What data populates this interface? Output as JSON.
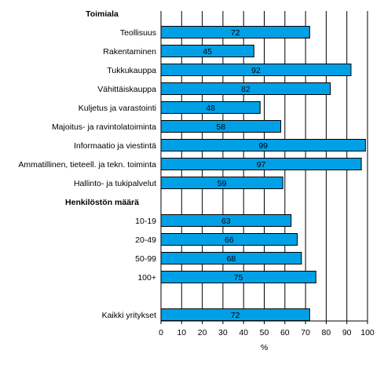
{
  "chart_data": {
    "type": "bar",
    "orientation": "horizontal",
    "xlabel": "%",
    "xlim": [
      0,
      100
    ],
    "xticks": [
      0,
      10,
      20,
      30,
      40,
      50,
      60,
      70,
      80,
      90,
      100
    ],
    "grid": "vertical",
    "bar_color": "#00a0e6",
    "rows": [
      {
        "kind": "heading",
        "label": "Toimiala"
      },
      {
        "kind": "bar",
        "label": "Teollisuus",
        "value": 72
      },
      {
        "kind": "bar",
        "label": "Rakentaminen",
        "value": 45
      },
      {
        "kind": "bar",
        "label": "Tukkukauppa",
        "value": 92
      },
      {
        "kind": "bar",
        "label": "Vähittäiskauppa",
        "value": 82
      },
      {
        "kind": "bar",
        "label": "Kuljetus ja varastointi",
        "value": 48
      },
      {
        "kind": "bar",
        "label": "Majoitus- ja ravintolatoiminta",
        "value": 58
      },
      {
        "kind": "bar",
        "label": "Informaatio ja viestintä",
        "value": 99
      },
      {
        "kind": "bar",
        "label": "Ammatillinen, tieteell. ja tekn. toiminta",
        "value": 97
      },
      {
        "kind": "bar",
        "label": "Hallinto- ja tukipalvelut",
        "value": 59
      },
      {
        "kind": "heading",
        "label": "Henkilöstön määrä"
      },
      {
        "kind": "bar",
        "label": "10-19",
        "value": 63
      },
      {
        "kind": "bar",
        "label": "20-49",
        "value": 66
      },
      {
        "kind": "bar",
        "label": "50-99",
        "value": 68
      },
      {
        "kind": "bar",
        "label": "100+",
        "value": 75
      },
      {
        "kind": "spacer"
      },
      {
        "kind": "bar",
        "label": "Kaikki yritykset",
        "value": 72
      }
    ]
  }
}
